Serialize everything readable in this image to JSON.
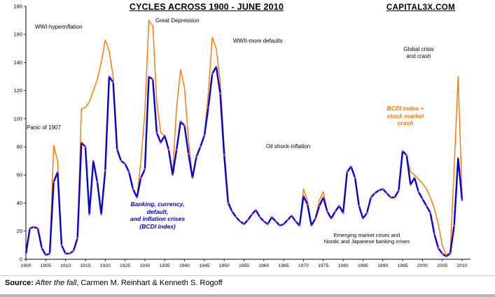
{
  "header": {
    "title": "CYCLES ACROSS 1900 - JUNE 2010",
    "watermark": "CAPITAL3X.COM"
  },
  "chart_data": {
    "type": "line",
    "title": "CYCLES ACROSS 1900 - JUNE 2010",
    "xlabel": "",
    "ylabel": "",
    "x_range": [
      1900,
      2010
    ],
    "x_step": 1,
    "ylim": [
      0,
      180
    ],
    "yticks": [
      0,
      20,
      40,
      60,
      80,
      100,
      120,
      140,
      160,
      180
    ],
    "xticks": [
      1900,
      1905,
      1910,
      1915,
      1920,
      1925,
      1930,
      1935,
      1940,
      1945,
      1950,
      1955,
      1960,
      1965,
      1970,
      1975,
      1980,
      1985,
      1990,
      1995,
      2000,
      2005,
      2010
    ],
    "grid": false,
    "legend_position": "annotations-on-plot",
    "marker_color": "#e0418a",
    "series": [
      {
        "name": "BCDI index",
        "color": "#0000d0",
        "values": [
          4,
          22,
          23,
          22,
          8,
          3,
          4,
          55,
          62,
          10,
          4,
          4,
          6,
          15,
          83,
          80,
          32,
          70,
          55,
          32,
          63,
          130,
          126,
          78,
          70,
          68,
          62,
          50,
          44,
          58,
          64,
          130,
          128,
          90,
          83,
          88,
          78,
          60,
          78,
          98,
          95,
          75,
          58,
          73,
          80,
          88,
          108,
          132,
          137,
          118,
          74,
          40,
          34,
          30,
          27,
          25,
          28,
          32,
          35,
          30,
          27,
          25,
          30,
          27,
          24,
          25,
          28,
          31,
          27,
          24,
          45,
          39,
          24,
          29,
          38,
          44,
          34,
          29,
          34,
          38,
          33,
          62,
          66,
          58,
          38,
          29,
          33,
          44,
          47,
          49,
          50,
          47,
          44,
          44,
          49,
          77,
          74,
          53,
          58,
          48,
          43,
          38,
          33,
          18,
          8,
          4,
          2,
          4,
          24,
          72,
          42
        ]
      },
      {
        "name": "BCDI index + stock market crash",
        "color": "#ff7700",
        "values": [
          4,
          22,
          23,
          22,
          8,
          3,
          4,
          81,
          70,
          10,
          4,
          4,
          6,
          15,
          107,
          108,
          112,
          120,
          128,
          140,
          156,
          148,
          130,
          80,
          70,
          68,
          62,
          50,
          44,
          70,
          105,
          170,
          166,
          112,
          90,
          88,
          78,
          62,
          108,
          135,
          122,
          85,
          58,
          73,
          80,
          88,
          118,
          158,
          150,
          126,
          80,
          42,
          34,
          30,
          27,
          25,
          28,
          32,
          35,
          30,
          27,
          25,
          30,
          27,
          24,
          25,
          28,
          31,
          27,
          24,
          50,
          42,
          24,
          29,
          42,
          48,
          34,
          29,
          34,
          38,
          33,
          62,
          66,
          58,
          38,
          29,
          33,
          44,
          47,
          49,
          50,
          47,
          44,
          44,
          49,
          77,
          74,
          62,
          60,
          57,
          54,
          50,
          44,
          36,
          25,
          10,
          3,
          5,
          65,
          130,
          45
        ]
      }
    ],
    "annotations": [
      "WWI-hyperinflation",
      "Great Depression",
      "WWII-more defaults",
      "Global crisis and crash",
      "Panic of 1907",
      "Oil shock-inflation",
      "BCDI index + stock market crash",
      "Banking, currency, default, and inflation crises (BCDI index)",
      "Emerging market crises and Nordic and Japanese banking crises"
    ]
  },
  "annotations": {
    "wwi": "WWI-hyperinflation",
    "great_depression": "Great Depression",
    "wwii": "WWII-more defaults",
    "global_crisis": "Global crisis\nand crash",
    "panic": "Panic of 1907",
    "oil": "Oil shock-inflation",
    "bcdi_crash": "BCDI index +\nstock market\ncrash",
    "bcdi": "Banking, currency,\ndefault,\nand inflation crises\n(BCDI index)",
    "emerging": "Emerging market crises and\nNordic and Japanese banking crises"
  },
  "footer": {
    "source_label": "Source:",
    "source_title": " After the fall",
    "source_rest": ", Carmen M. Reinhart & Kenneth S. Rogoff"
  }
}
